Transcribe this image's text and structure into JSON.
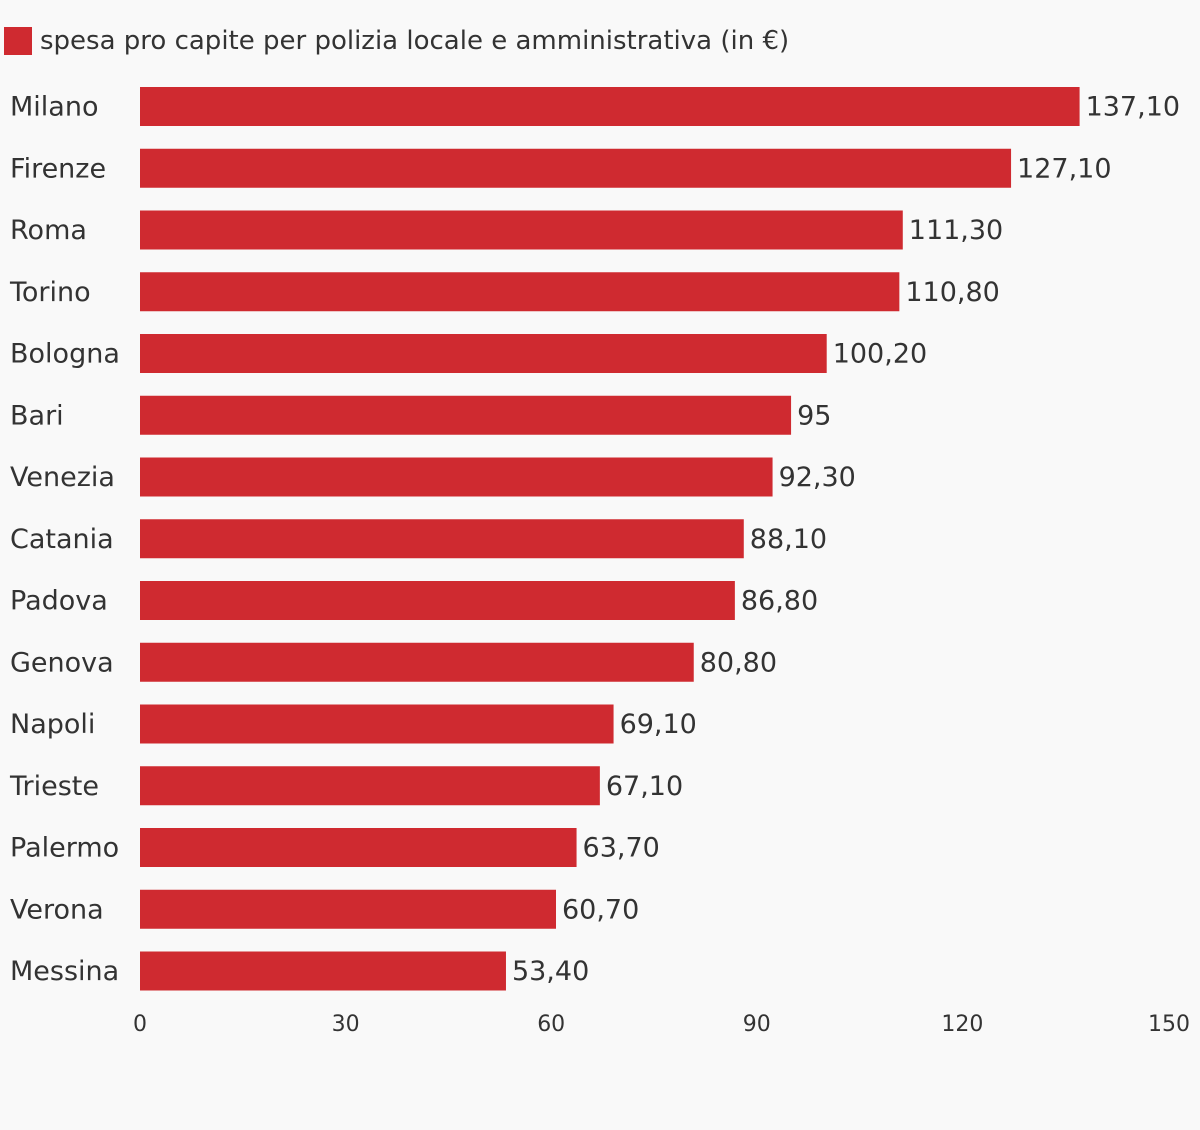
{
  "chart_data": {
    "type": "bar",
    "orientation": "horizontal",
    "categories": [
      "Milano",
      "Firenze",
      "Roma",
      "Torino",
      "Bologna",
      "Bari",
      "Venezia",
      "Catania",
      "Padova",
      "Genova",
      "Napoli",
      "Trieste",
      "Palermo",
      "Verona",
      "Messina"
    ],
    "series": [
      {
        "name": "spesa pro capite per polizia locale e amministrativa (in €)",
        "color": "#cf2a30",
        "values": [
          137.1,
          127.1,
          111.3,
          110.8,
          100.2,
          95,
          92.3,
          88.1,
          86.8,
          80.8,
          69.1,
          67.1,
          63.7,
          60.7,
          53.4
        ],
        "value_labels": [
          "137,10",
          "127,10",
          "111,30",
          "110,80",
          "100,20",
          "95",
          "92,30",
          "88,10",
          "86,80",
          "80,80",
          "69,10",
          "67,10",
          "63,70",
          "60,70",
          "53,40"
        ]
      }
    ],
    "xlim": [
      0,
      150
    ],
    "xticks": [
      0,
      30,
      60,
      90,
      120,
      150
    ],
    "xtick_labels": [
      "0",
      "30",
      "60",
      "90",
      "120",
      "150"
    ],
    "grid": false,
    "legend_position": "top-left"
  }
}
